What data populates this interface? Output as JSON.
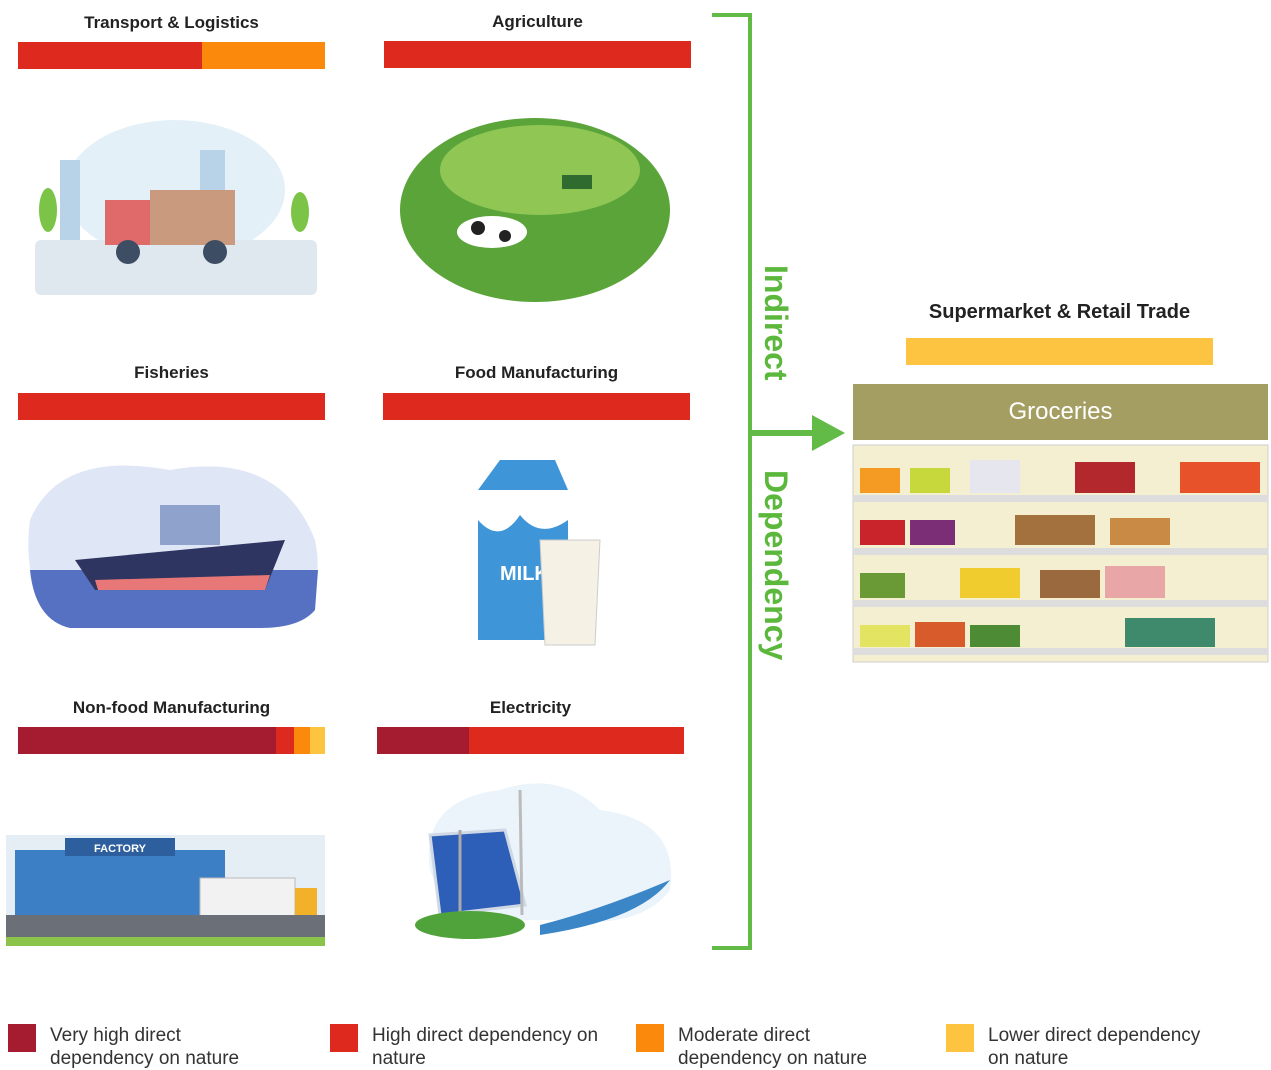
{
  "sectors": [
    {
      "name": "Transport & Logistics",
      "segments": [
        {
          "level": 1,
          "share": 60
        },
        {
          "level": 2,
          "share": 40
        }
      ]
    },
    {
      "name": "Agriculture",
      "segments": [
        {
          "level": 1,
          "share": 100
        }
      ]
    },
    {
      "name": "Fisheries",
      "segments": [
        {
          "level": 1,
          "share": 100
        }
      ]
    },
    {
      "name": "Food Manufacturing",
      "segments": [
        {
          "level": 1,
          "share": 100
        }
      ]
    },
    {
      "name": "Non-food Manufacturing",
      "segments": [
        {
          "level": 0,
          "share": 84
        },
        {
          "level": 1,
          "share": 6
        },
        {
          "level": 2,
          "share": 5
        },
        {
          "level": 3,
          "share": 5
        }
      ]
    },
    {
      "name": "Electricity",
      "segments": [
        {
          "level": 0,
          "share": 30
        },
        {
          "level": 1,
          "share": 70
        }
      ]
    }
  ],
  "connector": {
    "line1": "Indirect",
    "line2": "Dependency"
  },
  "retail": {
    "name": "Supermarket & Retail Trade",
    "segments": [
      {
        "level": 3,
        "share": 100
      }
    ],
    "banner": "Groceries"
  },
  "legend": [
    {
      "label": "Very high direct dependency on  nature",
      "color": "#a51c30"
    },
    {
      "label": "High direct dependency on nature",
      "color": "#de2a1e"
    },
    {
      "label": "Moderate direct dependency on nature",
      "color": "#fb8a0c"
    },
    {
      "label": "Lower direct dependency on nature",
      "color": "#fcc440"
    }
  ]
}
